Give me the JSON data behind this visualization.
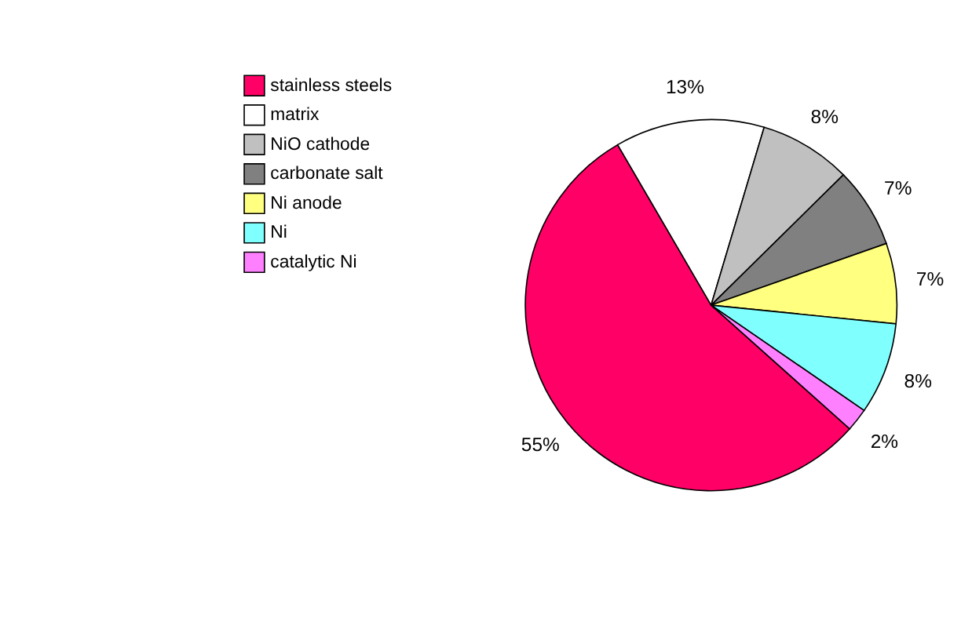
{
  "chart_data": {
    "type": "pie",
    "categories": [
      "stainless steels",
      "matrix",
      "NiO cathode",
      "carbonate salt",
      "Ni anode",
      "Ni",
      "catalytic Ni"
    ],
    "values": [
      55,
      13,
      8,
      7,
      7,
      8,
      2
    ],
    "colors": [
      "#ff0066",
      "#ffffff",
      "#c0c0c0",
      "#808080",
      "#ffff80",
      "#80ffff",
      "#ff80ff"
    ],
    "value_labels": [
      "55%",
      "13%",
      "8%",
      "7%",
      "7%",
      "8%",
      "2%"
    ],
    "legend": "top left"
  }
}
